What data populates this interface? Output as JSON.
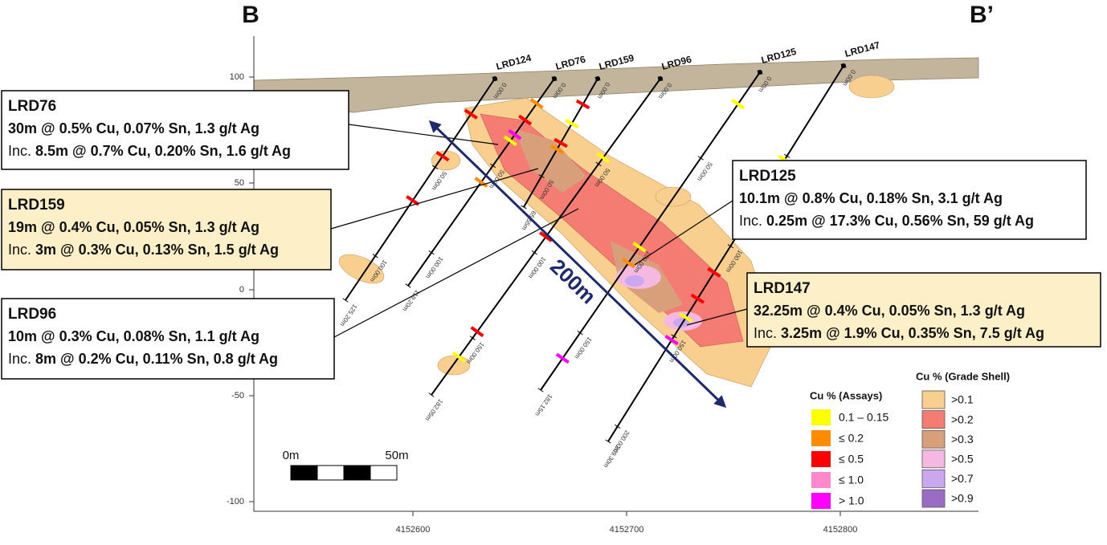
{
  "section_labels": [
    "B",
    "B’"
  ],
  "axes": {
    "y_ticks": [
      "100",
      "50",
      "0",
      "-50",
      "-100"
    ],
    "x_ticks": [
      "4152600",
      "4152700",
      "4152800"
    ]
  },
  "drillholes": [
    {
      "name": "LRD124",
      "depths": [
        "0.00m",
        "50.00m",
        "100.00m",
        "125.20m"
      ]
    },
    {
      "name": "LRD76",
      "depths": [
        "0.00m",
        "50.00m",
        "100.00m",
        "119.20m"
      ]
    },
    {
      "name": "LRD159",
      "depths": [
        "0.00m",
        "50.00m",
        "65.55m"
      ]
    },
    {
      "name": "LRD96",
      "depths": [
        "0.00m",
        "50.00m",
        "100.00m",
        "150.00m",
        "182.05m"
      ]
    },
    {
      "name": "LRD125",
      "depths": [
        "0.00m",
        "50.00m",
        "100.00m",
        "150.00m",
        "182.15m"
      ]
    },
    {
      "name": "LRD147",
      "depths": [
        "0.00m",
        "50.00m",
        "100.00m",
        "150.00m",
        "200.00m",
        "209.30m"
      ]
    }
  ],
  "callouts": [
    {
      "hole": "LRD76",
      "main": "30m @ 0.5% Cu, 0.07% Sn, 1.3 g/t Ag",
      "inc_label": "Inc.",
      "inc": "8.5m @ 0.7% Cu, 0.20% Sn, 1.6 g/t Ag"
    },
    {
      "hole": "LRD159",
      "main": "19m @ 0.4% Cu, 0.05% Sn, 1.3 g/t Ag",
      "inc_label": "Inc.",
      "inc": "3m @ 0.3% Cu, 0.13% Sn, 1.5 g/t Ag"
    },
    {
      "hole": "LRD96",
      "main": "10m @ 0.3% Cu, 0.08% Sn, 1.1 g/t Ag",
      "inc_label": "Inc.",
      "inc": "8m @ 0.2% Cu, 0.11% Sn, 0.8 g/t Ag"
    },
    {
      "hole": "LRD125",
      "main": "10.1m @ 0.8% Cu, 0.18% Sn, 3.1 g/t Ag",
      "inc_label": "Inc.",
      "inc": "0.25m @ 17.3% Cu, 0.56% Sn, 59 g/t Ag"
    },
    {
      "hole": "LRD147",
      "main": "32.25m @ 0.4% Cu, 0.05% Sn, 1.3 g/t Ag",
      "inc_label": "Inc.",
      "inc": "3.25m @ 1.9% Cu, 0.35% Sn, 7.5 g/t Ag"
    }
  ],
  "scale_bar": {
    "start": "0m",
    "end": "50m"
  },
  "arrow_label": "200m",
  "legend_assays": {
    "title": "Cu % (Assays)",
    "items": [
      "0.1 – 0.15",
      "≤ 0.2",
      "≤ 0.5",
      "≤ 1.0",
      "> 1.0"
    ]
  },
  "legend_shell": {
    "title": "Cu % (Grade Shell)",
    "items": [
      ">0.1",
      ">0.2",
      ">0.3",
      ">0.5",
      ">0.7",
      ">0.9"
    ]
  }
}
